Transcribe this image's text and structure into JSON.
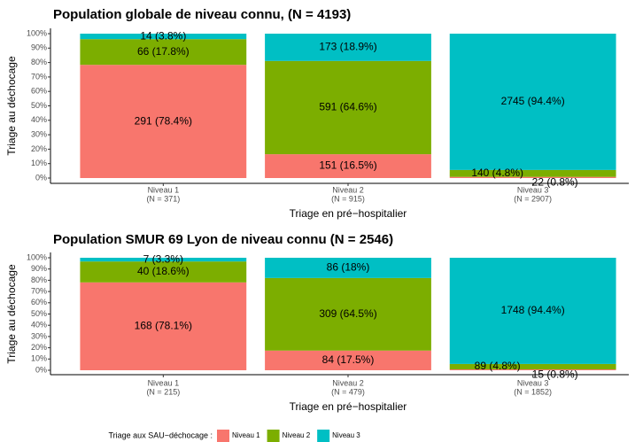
{
  "chart_data": [
    {
      "type": "bar",
      "stacked": true,
      "title": "Population globale de niveau connu, (N = 4193)",
      "x_label": "Triage en pré−hospitalier",
      "y_label": "Triage au déchocage",
      "categories": [
        "Niveau 1",
        "Niveau 2",
        "Niveau 3"
      ],
      "category_counts": [
        "(N = 371)",
        "(N = 915)",
        "(N = 2907)"
      ],
      "ylim": [
        0,
        100
      ],
      "yticks": [
        {
          "value": 0,
          "label": "0%"
        },
        {
          "value": 10,
          "label": "10%"
        },
        {
          "value": 20,
          "label": "20%"
        },
        {
          "value": 30,
          "label": "30%"
        },
        {
          "value": 40,
          "label": "40%"
        },
        {
          "value": 50,
          "label": "50%"
        },
        {
          "value": 60,
          "label": "60%"
        },
        {
          "value": 70,
          "label": "70%"
        },
        {
          "value": 80,
          "label": "80%"
        },
        {
          "value": 90,
          "label": "90%"
        },
        {
          "value": 100,
          "label": "100%"
        }
      ],
      "series": [
        {
          "name": "Niveau 1",
          "color": "#f8766d",
          "values": [
            78.4,
            16.5,
            0.8
          ],
          "value_labels": [
            "291 (78.4%)",
            "151 (16.5%)",
            "22 (0.8%)"
          ]
        },
        {
          "name": "Niveau 2",
          "color": "#7cae00",
          "values": [
            17.8,
            64.6,
            4.8
          ],
          "value_labels": [
            "66 (17.8%)",
            "591 (64.6%)",
            "140 (4.8%)"
          ]
        },
        {
          "name": "Niveau 3",
          "color": "#00bfc4",
          "values": [
            3.8,
            18.9,
            94.4
          ],
          "value_labels": [
            "14 (3.8%)",
            "173 (18.9%)",
            "2745 (94.4%)"
          ]
        }
      ]
    },
    {
      "type": "bar",
      "stacked": true,
      "title": "Population SMUR 69 Lyon de niveau connu (N = 2546)",
      "x_label": "Triage en pré−hospitalier",
      "y_label": "Triage au déchocage",
      "categories": [
        "Niveau 1",
        "Niveau 2",
        "Niveau 3"
      ],
      "category_counts": [
        "(N = 215)",
        "(N = 479)",
        "(N = 1852)"
      ],
      "ylim": [
        0,
        100
      ],
      "yticks": [
        {
          "value": 0,
          "label": "0%"
        },
        {
          "value": 10,
          "label": "10%"
        },
        {
          "value": 20,
          "label": "20%"
        },
        {
          "value": 30,
          "label": "30%"
        },
        {
          "value": 40,
          "label": "40%"
        },
        {
          "value": 50,
          "label": "50%"
        },
        {
          "value": 60,
          "label": "60%"
        },
        {
          "value": 70,
          "label": "70%"
        },
        {
          "value": 80,
          "label": "80%"
        },
        {
          "value": 90,
          "label": "90%"
        },
        {
          "value": 100,
          "label": "100%"
        }
      ],
      "series": [
        {
          "name": "Niveau 1",
          "color": "#f8766d",
          "values": [
            78.1,
            17.5,
            0.8
          ],
          "value_labels": [
            "168 (78.1%)",
            "84 (17.5%)",
            "15 (0.8%)"
          ]
        },
        {
          "name": "Niveau 2",
          "color": "#7cae00",
          "values": [
            18.6,
            64.5,
            4.8
          ],
          "value_labels": [
            "40 (18.6%)",
            "309 (64.5%)",
            "89 (4.8%)"
          ]
        },
        {
          "name": "Niveau 3",
          "color": "#00bfc4",
          "values": [
            3.3,
            18,
            94.4
          ],
          "value_labels": [
            "7 (3.3%)",
            "86 (18%)",
            "1748 (94.4%)"
          ]
        }
      ]
    }
  ],
  "legend_title": "Triage aux SAU−déchocage :"
}
